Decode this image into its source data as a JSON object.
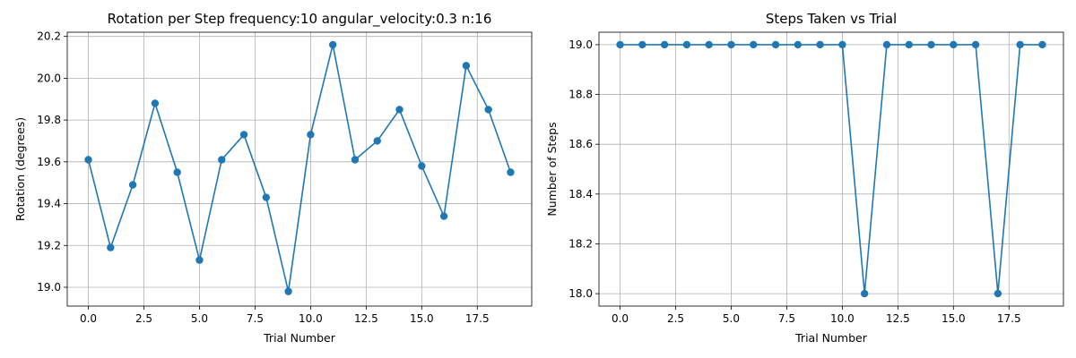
{
  "chart_data": [
    {
      "type": "line",
      "title": "Rotation per Step frequency:10 angular_velocity:0.3 n:16",
      "xlabel": "Trial Number",
      "ylabel": "Rotation (degrees)",
      "xlim": [
        -0.95,
        19.95
      ],
      "ylim": [
        18.91,
        20.22
      ],
      "xticks": [
        0,
        2.5,
        5,
        7.5,
        10,
        12.5,
        15,
        17.5
      ],
      "xtick_labels": [
        "0.0",
        "2.5",
        "5.0",
        "7.5",
        "10.0",
        "12.5",
        "15.0",
        "17.5"
      ],
      "yticks": [
        19.0,
        19.2,
        19.4,
        19.6,
        19.8,
        20.0,
        20.2
      ],
      "ytick_labels": [
        "19.0",
        "19.2",
        "19.4",
        "19.6",
        "19.8",
        "20.0",
        "20.2"
      ],
      "grid": true,
      "color": "#1f77b4",
      "marker": "circle",
      "x": [
        0,
        1,
        2,
        3,
        4,
        5,
        6,
        7,
        8,
        9,
        10,
        11,
        12,
        13,
        14,
        15,
        16,
        17,
        18,
        19
      ],
      "y": [
        19.61,
        19.19,
        19.49,
        19.88,
        19.55,
        19.13,
        19.61,
        19.73,
        19.43,
        18.98,
        19.73,
        20.16,
        19.61,
        19.7,
        19.85,
        19.58,
        19.34,
        20.06,
        19.85,
        19.55
      ]
    },
    {
      "type": "line",
      "title": "Steps Taken vs Trial",
      "xlabel": "Trial Number",
      "ylabel": "Number of Steps",
      "xlim": [
        -0.95,
        19.95
      ],
      "ylim": [
        17.95,
        19.05
      ],
      "xticks": [
        0,
        2.5,
        5,
        7.5,
        10,
        12.5,
        15,
        17.5
      ],
      "xtick_labels": [
        "0.0",
        "2.5",
        "5.0",
        "7.5",
        "10.0",
        "12.5",
        "15.0",
        "17.5"
      ],
      "yticks": [
        18.0,
        18.2,
        18.4,
        18.6,
        18.8,
        19.0
      ],
      "ytick_labels": [
        "18.0",
        "18.2",
        "18.4",
        "18.6",
        "18.8",
        "19.0"
      ],
      "grid": true,
      "color": "#1f77b4",
      "marker": "circle",
      "x": [
        0,
        1,
        2,
        3,
        4,
        5,
        6,
        7,
        8,
        9,
        10,
        11,
        12,
        13,
        14,
        15,
        16,
        17,
        18,
        19
      ],
      "y": [
        19,
        19,
        19,
        19,
        19,
        19,
        19,
        19,
        19,
        19,
        19,
        18,
        19,
        19,
        19,
        19,
        19,
        18,
        19,
        19
      ]
    }
  ]
}
